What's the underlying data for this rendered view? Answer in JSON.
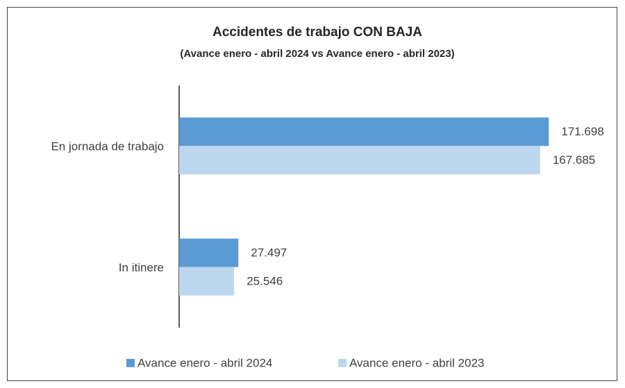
{
  "chart_data": {
    "type": "hbar",
    "title": "Accidentes de trabajo CON BAJA",
    "subtitle": "(Avance enero - abril 2024 vs Avance enero - abril 2023)",
    "categories": [
      "En jornada de trabajo",
      "In itinere"
    ],
    "series": [
      {
        "name": "Avance enero - abril 2024",
        "color": "#5b9bd5",
        "values": [
          171698,
          27497
        ],
        "value_labels": [
          "171.698",
          "27.497"
        ]
      },
      {
        "name": "Avance enero - abril 2023",
        "color": "#bdd7ee",
        "values": [
          167685,
          25546
        ],
        "value_labels": [
          "167.685",
          "25.546"
        ]
      }
    ],
    "xlim": [
      0,
      200000
    ],
    "legend": "bottom"
  }
}
